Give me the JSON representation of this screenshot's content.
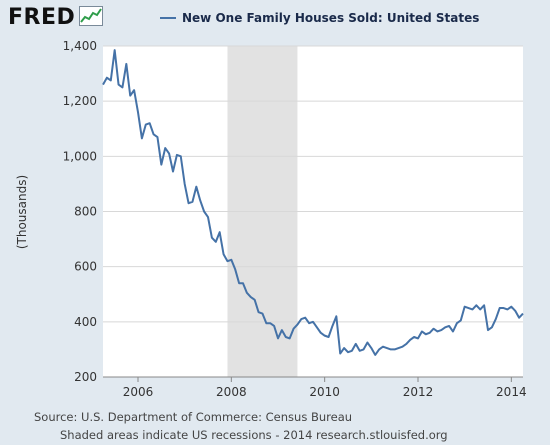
{
  "header": {
    "logo_text": "FRED",
    "logo_icon": "line-chart-icon"
  },
  "chart_data": {
    "type": "line",
    "title": "New One Family Houses Sold: United States",
    "ylabel": "(Thousands)",
    "xlabel": "",
    "ylim": [
      200,
      1400
    ],
    "xlim": [
      2005.25,
      2014.25
    ],
    "yticks": [
      200,
      400,
      600,
      800,
      1000,
      1200,
      1400
    ],
    "yticklabels": [
      "200",
      "400",
      "600",
      "800",
      "1,000",
      "1,200",
      "1,400"
    ],
    "xticks": [
      2006,
      2008,
      2010,
      2012,
      2014
    ],
    "xticklabels": [
      "2006",
      "2008",
      "2010",
      "2012",
      "2014"
    ],
    "grid": true,
    "recession": {
      "start": 2007.917,
      "end": 2009.417,
      "color": "#e2e2e2"
    },
    "series": [
      {
        "name": "New One Family Houses Sold: United States",
        "color": "#4572a7",
        "x_start": 2005.25,
        "x_step_months": 1,
        "values": [
          1260,
          1285,
          1275,
          1385,
          1260,
          1250,
          1335,
          1220,
          1240,
          1160,
          1065,
          1115,
          1120,
          1080,
          1070,
          970,
          1030,
          1010,
          945,
          1005,
          1000,
          900,
          830,
          835,
          890,
          840,
          800,
          780,
          705,
          690,
          725,
          645,
          620,
          625,
          590,
          540,
          540,
          505,
          490,
          480,
          435,
          430,
          395,
          395,
          385,
          340,
          370,
          345,
          340,
          375,
          390,
          410,
          415,
          395,
          400,
          380,
          360,
          350,
          345,
          385,
          420,
          285,
          305,
          290,
          295,
          320,
          295,
          300,
          325,
          305,
          280,
          300,
          310,
          305,
          300,
          300,
          305,
          310,
          320,
          335,
          345,
          340,
          365,
          355,
          360,
          375,
          365,
          370,
          380,
          385,
          365,
          395,
          405,
          455,
          450,
          445,
          460,
          445,
          460,
          370,
          380,
          410,
          450,
          450,
          445,
          455,
          440,
          415,
          430
        ]
      }
    ]
  },
  "footer": {
    "source": "Source: U.S. Department of Commerce: Census Bureau",
    "note": "Shaded areas indicate US recessions - 2014 research.stlouisfed.org"
  }
}
